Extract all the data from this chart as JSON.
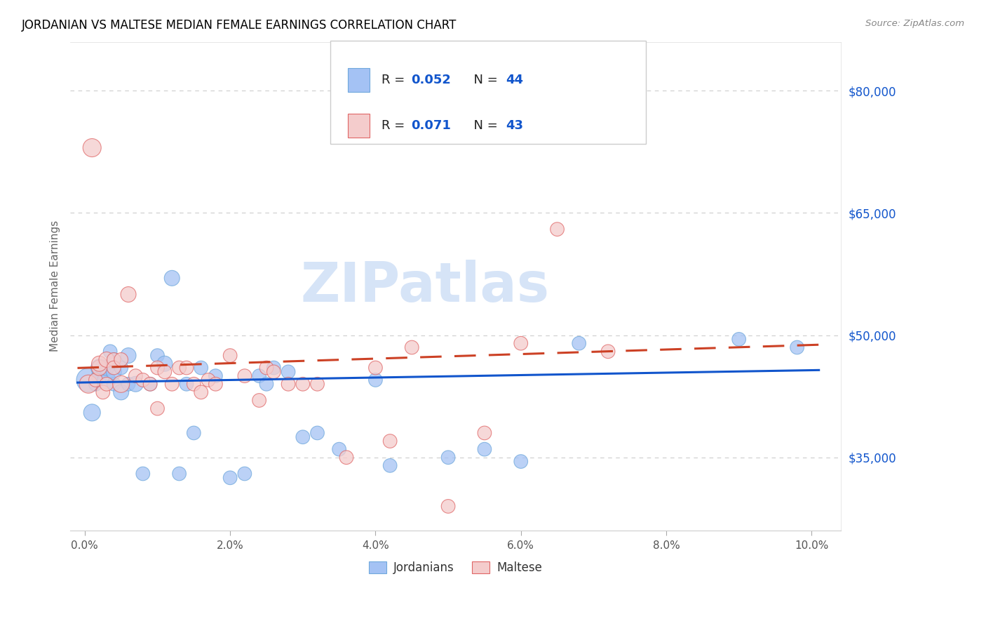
{
  "title": "JORDANIAN VS MALTESE MEDIAN FEMALE EARNINGS CORRELATION CHART",
  "source": "Source: ZipAtlas.com",
  "ylabel_text": "Median Female Earnings",
  "xlim": [
    -0.002,
    0.104
  ],
  "ylim": [
    26000,
    86000
  ],
  "xticks": [
    0.0,
    0.02,
    0.04,
    0.06,
    0.08,
    0.1
  ],
  "xticklabels": [
    "0.0%",
    "2.0%",
    "4.0%",
    "6.0%",
    "8.0%",
    "10.0%"
  ],
  "ytick_positions": [
    35000,
    50000,
    65000,
    80000
  ],
  "ytick_labels": [
    "$35,000",
    "$50,000",
    "$65,000",
    "$80,000"
  ],
  "blue_color": "#a4c2f4",
  "pink_color": "#f4cccc",
  "blue_edge": "#6fa8dc",
  "pink_edge": "#e06666",
  "trend_blue": "#1155cc",
  "trend_pink": "#cc4125",
  "grid_color": "#cccccc",
  "title_color": "#000000",
  "ylabel_color": "#666666",
  "yticklabel_color": "#1155cc",
  "xticklabel_color": "#555555",
  "watermark_color": "#d6e4f7",
  "watermark_text": "ZIPatlas",
  "legend_r1": "R = ",
  "legend_v1": "0.052",
  "legend_n1_label": "N = ",
  "legend_n1_val": "44",
  "legend_r2": "R = ",
  "legend_v2": "0.071",
  "legend_n2_label": "N = ",
  "legend_n2_val": "43",
  "jordanians_x": [
    0.0005,
    0.001,
    0.0015,
    0.002,
    0.002,
    0.0025,
    0.003,
    0.003,
    0.0035,
    0.004,
    0.004,
    0.004,
    0.005,
    0.005,
    0.006,
    0.006,
    0.007,
    0.008,
    0.009,
    0.01,
    0.011,
    0.012,
    0.013,
    0.014,
    0.015,
    0.016,
    0.018,
    0.02,
    0.022,
    0.024,
    0.025,
    0.026,
    0.028,
    0.03,
    0.032,
    0.035,
    0.04,
    0.042,
    0.05,
    0.055,
    0.06,
    0.068,
    0.09,
    0.098
  ],
  "jordanians_y": [
    44500,
    40500,
    44000,
    45000,
    46000,
    46000,
    44500,
    46000,
    48000,
    44000,
    45500,
    47000,
    43000,
    46000,
    44000,
    47500,
    44000,
    33000,
    44000,
    47500,
    46500,
    57000,
    33000,
    44000,
    38000,
    46000,
    45000,
    32500,
    33000,
    45000,
    44000,
    46000,
    45500,
    37500,
    38000,
    36000,
    44500,
    34000,
    35000,
    36000,
    34500,
    49000,
    49500,
    48500
  ],
  "jordanians_size": [
    600,
    300,
    200,
    250,
    300,
    250,
    350,
    250,
    200,
    200,
    250,
    200,
    250,
    200,
    200,
    250,
    250,
    200,
    200,
    200,
    250,
    250,
    200,
    200,
    200,
    200,
    200,
    200,
    200,
    200,
    200,
    200,
    200,
    200,
    200,
    200,
    200,
    200,
    200,
    200,
    200,
    200,
    200,
    200
  ],
  "maltese_x": [
    0.0005,
    0.001,
    0.0015,
    0.002,
    0.002,
    0.0025,
    0.003,
    0.003,
    0.004,
    0.004,
    0.005,
    0.005,
    0.006,
    0.007,
    0.008,
    0.009,
    0.01,
    0.01,
    0.011,
    0.012,
    0.013,
    0.014,
    0.015,
    0.016,
    0.017,
    0.018,
    0.02,
    0.022,
    0.024,
    0.025,
    0.026,
    0.028,
    0.03,
    0.032,
    0.036,
    0.04,
    0.042,
    0.045,
    0.05,
    0.055,
    0.06,
    0.065,
    0.072
  ],
  "maltese_y": [
    44000,
    73000,
    44500,
    46000,
    46500,
    43000,
    47000,
    44000,
    47000,
    46000,
    44000,
    47000,
    55000,
    45000,
    44500,
    44000,
    41000,
    46000,
    45500,
    44000,
    46000,
    46000,
    44000,
    43000,
    44500,
    44000,
    47500,
    45000,
    42000,
    46000,
    45500,
    44000,
    44000,
    44000,
    35000,
    46000,
    37000,
    48500,
    29000,
    38000,
    49000,
    63000,
    48000
  ],
  "maltese_size": [
    350,
    350,
    200,
    250,
    250,
    200,
    250,
    200,
    200,
    200,
    300,
    200,
    250,
    200,
    200,
    200,
    200,
    200,
    200,
    200,
    200,
    200,
    200,
    200,
    200,
    200,
    200,
    200,
    200,
    200,
    200,
    200,
    200,
    200,
    200,
    200,
    200,
    200,
    200,
    200,
    200,
    200,
    200
  ]
}
